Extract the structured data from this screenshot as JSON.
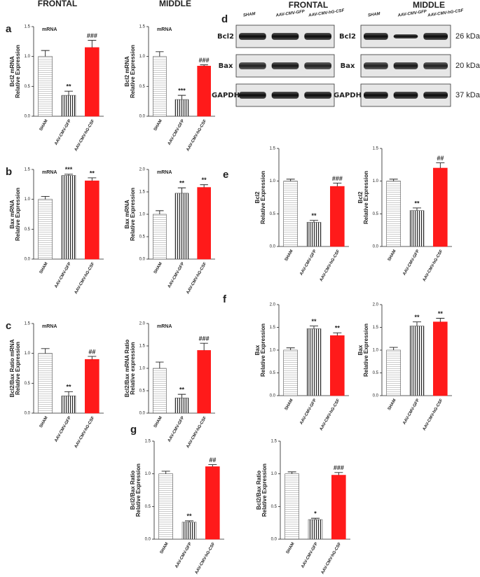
{
  "figure": {
    "headers": [
      "FRONTAL",
      "MIDDLE"
    ],
    "letters": [
      "a",
      "b",
      "c",
      "d",
      "e",
      "f",
      "g"
    ]
  },
  "blot": {
    "lanes": [
      "SHAM",
      "AAV-CMV-GFP",
      "AAV-CMV-hG-CSF"
    ],
    "rows": [
      "Bcl2",
      "Bax",
      "GAPDH"
    ],
    "sizes": [
      "26 kDa",
      "20 kDa",
      "37 kDa"
    ]
  },
  "chart_data": [
    {
      "type": "bar",
      "annotation": "mRNA",
      "ylabel": [
        "Bcl2 mRNA",
        "Relative Expression"
      ],
      "categories": [
        "SHAM",
        "AAV-CMV-GFP",
        "AAV-CMV-hG-CSF"
      ],
      "values": [
        1.0,
        0.35,
        1.15
      ],
      "errors": [
        0.1,
        0.07,
        0.12
      ],
      "significance": [
        null,
        "**",
        "###"
      ],
      "bar_styles": [
        "horizontal-hatch",
        "vertical-hatch",
        "solid"
      ],
      "colors": [
        "#aaaaaa",
        "#222222",
        "#ff1a1a"
      ],
      "ylim": [
        0,
        1.5
      ],
      "yticks": [
        {
          "value": 0,
          "label": "0.0"
        },
        0.5,
        {
          "value": 1,
          "label": "1.0"
        },
        1.5
      ]
    },
    {
      "type": "bar",
      "annotation": "mRNA",
      "ylabel": [
        "Bcl2 mRNA",
        "Relative Expression"
      ],
      "categories": [
        "SHAM",
        "AAV-CMV-GFP",
        "AAV-CMV-hG-CSF"
      ],
      "values": [
        1.0,
        0.28,
        0.84
      ],
      "errors": [
        0.08,
        0.07,
        0.02
      ],
      "significance": [
        null,
        "***",
        "###"
      ],
      "bar_styles": [
        "horizontal-hatch",
        "vertical-hatch",
        "solid"
      ],
      "colors": [
        "#aaaaaa",
        "#222222",
        "#ff1a1a"
      ],
      "ylim": [
        0,
        1.5
      ],
      "yticks": [
        {
          "value": 0,
          "label": "0.0"
        },
        0.5,
        {
          "value": 1,
          "label": "1.0"
        },
        1.5
      ]
    },
    {
      "type": "bar",
      "annotation": "mRNA",
      "ylabel": [
        "Bax mRNA",
        "Relative Expression"
      ],
      "categories": [
        "SHAM",
        "AAV-CMV-GFP",
        "AAV-CMV-hG-CSF"
      ],
      "values": [
        1.0,
        1.4,
        1.31
      ],
      "errors": [
        0.05,
        0.02,
        0.05
      ],
      "significance": [
        null,
        "***",
        "**"
      ],
      "bar_styles": [
        "horizontal-hatch",
        "vertical-hatch",
        "solid"
      ],
      "colors": [
        "#aaaaaa",
        "#222222",
        "#ff1a1a"
      ],
      "ylim": [
        0,
        1.5
      ],
      "yticks": [
        {
          "value": 0,
          "label": "0.0"
        },
        0.5,
        {
          "value": 1,
          "label": "1.0"
        },
        1.5
      ]
    },
    {
      "type": "bar",
      "annotation": "mRNA",
      "ylabel": [
        "Bax mRNA",
        "Relative Expression"
      ],
      "categories": [
        "SHAM",
        "AAV-CMV-GFP",
        "AAV-CMV-hG-CSF"
      ],
      "values": [
        1.0,
        1.47,
        1.6
      ],
      "errors": [
        0.08,
        0.12,
        0.06
      ],
      "significance": [
        null,
        "**",
        "**"
      ],
      "bar_styles": [
        "horizontal-hatch",
        "vertical-hatch",
        "solid"
      ],
      "colors": [
        "#aaaaaa",
        "#222222",
        "#ff1a1a"
      ],
      "ylim": [
        0,
        2
      ],
      "yticks": [
        {
          "value": 0,
          "label": "0.0"
        },
        0.5,
        {
          "value": 1,
          "label": "1.0"
        },
        1.5,
        {
          "value": 2,
          "label": "2.0"
        }
      ]
    },
    {
      "type": "bar",
      "annotation": "mRNA",
      "ylabel": [
        "Bcl2/Bax Ratio mRNA",
        "Relative Expression"
      ],
      "categories": [
        "SHAM",
        "AAV-CMV-GFP",
        "AAV-CMV-hG-CSF"
      ],
      "values": [
        1.0,
        0.29,
        0.9
      ],
      "errors": [
        0.08,
        0.07,
        0.05
      ],
      "significance": [
        null,
        "**",
        "##"
      ],
      "bar_styles": [
        "horizontal-hatch",
        "vertical-hatch",
        "solid"
      ],
      "colors": [
        "#aaaaaa",
        "#222222",
        "#ff1a1a"
      ],
      "ylim": [
        0,
        1.5
      ],
      "yticks": [
        {
          "value": 0,
          "label": "0.0"
        },
        0.5,
        {
          "value": 1,
          "label": "1.0"
        },
        1.5
      ]
    },
    {
      "type": "bar",
      "annotation": "mRNA",
      "ylabel": [
        "Bcl2/Bax mRNA Ratio",
        "Relative expression"
      ],
      "categories": [
        "SHAM",
        "AAV-CMV-GFP",
        "AAV-CMV-hG-CSF"
      ],
      "values": [
        1.0,
        0.34,
        1.4
      ],
      "errors": [
        0.14,
        0.08,
        0.16
      ],
      "significance": [
        null,
        "**",
        "###"
      ],
      "bar_styles": [
        "horizontal-hatch",
        "vertical-hatch",
        "solid"
      ],
      "colors": [
        "#aaaaaa",
        "#222222",
        "#ff1a1a"
      ],
      "ylim": [
        0,
        2
      ],
      "yticks": [
        {
          "value": 0,
          "label": "0.0"
        },
        0.5,
        {
          "value": 1,
          "label": "1.0"
        },
        1.5,
        {
          "value": 2,
          "label": "2.0"
        }
      ]
    },
    {
      "type": "bar",
      "ylabel": [
        "Bcl2",
        "Relative Expression"
      ],
      "categories": [
        "SHAM",
        "AAV-CMV-GFP",
        "AAV-CMV-hG-CSF"
      ],
      "values": [
        1.0,
        0.37,
        0.92
      ],
      "errors": [
        0.03,
        0.03,
        0.05
      ],
      "significance": [
        null,
        "**",
        "###"
      ],
      "bar_styles": [
        "horizontal-hatch",
        "vertical-hatch",
        "solid"
      ],
      "colors": [
        "#aaaaaa",
        "#222222",
        "#ff1a1a"
      ],
      "ylim": [
        0,
        1.5
      ],
      "yticks": [
        {
          "value": 0,
          "label": "0.0"
        },
        0.5,
        {
          "value": 1,
          "label": "1.0"
        },
        1.5
      ]
    },
    {
      "type": "bar",
      "ylabel": [
        "Bcl2",
        "Relative Expression"
      ],
      "categories": [
        "SHAM",
        "AAV-CMV-GFP",
        "AAV-CMV-hG-CSF"
      ],
      "values": [
        1.0,
        0.55,
        1.2
      ],
      "errors": [
        0.03,
        0.04,
        0.08
      ],
      "significance": [
        null,
        "**",
        "##"
      ],
      "bar_styles": [
        "horizontal-hatch",
        "vertical-hatch",
        "solid"
      ],
      "colors": [
        "#aaaaaa",
        "#222222",
        "#ff1a1a"
      ],
      "ylim": [
        0,
        1.5
      ],
      "yticks": [
        {
          "value": 0,
          "label": "0.0"
        },
        0.5,
        {
          "value": 1,
          "label": "1.0"
        },
        1.5
      ]
    },
    {
      "type": "bar",
      "ylabel": [
        "Bax",
        "Relative Expression"
      ],
      "categories": [
        "SHAM",
        "AAV-CMV-GFP",
        "AAV-CMV-hG-CSF"
      ],
      "values": [
        1.0,
        1.47,
        1.32
      ],
      "errors": [
        0.05,
        0.06,
        0.06
      ],
      "significance": [
        null,
        "**",
        "**"
      ],
      "bar_styles": [
        "horizontal-hatch",
        "vertical-hatch",
        "solid"
      ],
      "colors": [
        "#aaaaaa",
        "#222222",
        "#ff1a1a"
      ],
      "ylim": [
        0,
        2
      ],
      "yticks": [
        {
          "value": 0,
          "label": "0.0"
        },
        0.5,
        {
          "value": 1,
          "label": "1.0"
        },
        1.5,
        {
          "value": 2,
          "label": "2.0"
        }
      ]
    },
    {
      "type": "bar",
      "ylabel": [
        "Bax",
        "Relative Expression"
      ],
      "categories": [
        "SHAM",
        "AAV-CMV-GFP",
        "AAV-CMV-hG-CSF"
      ],
      "values": [
        1.0,
        1.53,
        1.62
      ],
      "errors": [
        0.06,
        0.09,
        0.08
      ],
      "significance": [
        null,
        "**",
        "**"
      ],
      "bar_styles": [
        "horizontal-hatch",
        "vertical-hatch",
        "solid"
      ],
      "colors": [
        "#aaaaaa",
        "#222222",
        "#ff1a1a"
      ],
      "ylim": [
        0,
        2
      ],
      "yticks": [
        {
          "value": 0,
          "label": "0.0"
        },
        0.5,
        {
          "value": 1,
          "label": "1.0"
        },
        1.5,
        {
          "value": 2,
          "label": "2.0"
        }
      ]
    },
    {
      "type": "bar",
      "ylabel": [
        "Bcl2/Bax Ratio",
        "Relative Expression"
      ],
      "categories": [
        "SHAM",
        "AAV-CMV-GFP",
        "AAV-CMV-hG-CSF"
      ],
      "values": [
        1.0,
        0.26,
        1.11
      ],
      "errors": [
        0.04,
        0.02,
        0.03
      ],
      "significance": [
        null,
        "**",
        "##"
      ],
      "bar_styles": [
        "horizontal-hatch",
        "vertical-hatch",
        "solid"
      ],
      "colors": [
        "#aaaaaa",
        "#222222",
        "#ff1a1a"
      ],
      "ylim": [
        0,
        1.5
      ],
      "yticks": [
        {
          "value": 0,
          "label": "0.0"
        },
        0.5,
        {
          "value": 1,
          "label": "1.0"
        },
        1.5
      ]
    },
    {
      "type": "bar",
      "ylabel": [
        "Bcl2/Bax Ratio",
        "Relative Expression"
      ],
      "categories": [
        "SHAM",
        "AAV-CMV-GFP",
        "AAV-CMV-hG-CSF"
      ],
      "values": [
        1.0,
        0.3,
        0.98
      ],
      "errors": [
        0.03,
        0.02,
        0.04
      ],
      "significance": [
        null,
        "*",
        "###"
      ],
      "bar_styles": [
        "horizontal-hatch",
        "vertical-hatch",
        "solid"
      ],
      "colors": [
        "#aaaaaa",
        "#222222",
        "#ff1a1a"
      ],
      "ylim": [
        0,
        1.5
      ],
      "yticks": [
        {
          "value": 0,
          "label": "0.0"
        },
        0.5,
        {
          "value": 1,
          "label": "1.0"
        },
        1.5
      ]
    }
  ]
}
